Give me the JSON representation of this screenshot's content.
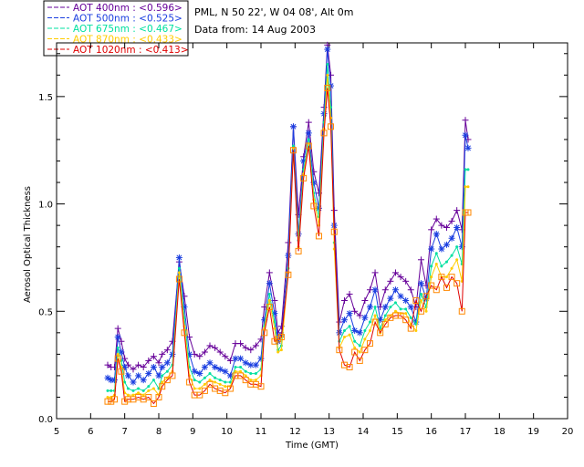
{
  "info": {
    "site": "PML, N 50 22', W 04 08', Alt 0m",
    "date": "Data from: 14 Aug 2003"
  },
  "chart_data": {
    "type": "line",
    "xlabel": "Time (GMT)",
    "ylabel": "Aerosol Optical Thickness",
    "xlim": [
      5,
      20
    ],
    "ylim": [
      0,
      1.75
    ],
    "xticks": [
      5,
      6,
      7,
      8,
      9,
      10,
      11,
      12,
      13,
      14,
      15,
      16,
      17,
      18,
      19,
      20
    ],
    "yticks": [
      0.0,
      0.5,
      1.0,
      1.5
    ],
    "ytick_labels": [
      "0.0",
      "0.5",
      "1.0",
      "1.5"
    ],
    "grid": false,
    "legend_position": "top-left, outside plot",
    "x": [
      6.5,
      6.6,
      6.7,
      6.8,
      6.9,
      7.0,
      7.1,
      7.25,
      7.4,
      7.55,
      7.7,
      7.85,
      8.0,
      8.1,
      8.25,
      8.4,
      8.6,
      8.75,
      8.9,
      9.05,
      9.2,
      9.35,
      9.5,
      9.65,
      9.8,
      9.95,
      10.1,
      10.25,
      10.4,
      10.55,
      10.7,
      10.85,
      11.0,
      11.1,
      11.25,
      11.4,
      11.5,
      11.6,
      11.8,
      11.95,
      12.1,
      12.25,
      12.4,
      12.55,
      12.7,
      12.85,
      12.95,
      13.05,
      13.15,
      13.3,
      13.45,
      13.6,
      13.75,
      13.9,
      14.05,
      14.2,
      14.35,
      14.5,
      14.65,
      14.8,
      14.95,
      15.1,
      15.25,
      15.4,
      15.55,
      15.7,
      15.85,
      16.0,
      16.15,
      16.3,
      16.45,
      16.6,
      16.75,
      16.9,
      17.0,
      17.08
    ],
    "series": [
      {
        "name": "AOT  400nm : <0.596>",
        "color": "#660099",
        "marker": "plus",
        "values": [
          0.25,
          0.24,
          0.24,
          0.42,
          0.36,
          0.28,
          0.25,
          0.23,
          0.25,
          0.24,
          0.27,
          0.29,
          0.26,
          0.3,
          0.32,
          0.36,
          0.73,
          0.57,
          0.38,
          0.3,
          0.29,
          0.31,
          0.34,
          0.33,
          0.31,
          0.29,
          0.27,
          0.35,
          0.35,
          0.33,
          0.32,
          0.34,
          0.37,
          0.52,
          0.68,
          0.55,
          0.4,
          0.43,
          0.82,
          1.36,
          0.95,
          1.22,
          1.38,
          1.15,
          1.05,
          1.45,
          1.74,
          1.6,
          0.97,
          0.45,
          0.55,
          0.58,
          0.5,
          0.48,
          0.55,
          0.6,
          0.68,
          0.52,
          0.6,
          0.64,
          0.68,
          0.66,
          0.64,
          0.6,
          0.52,
          0.74,
          0.62,
          0.88,
          0.93,
          0.9,
          0.89,
          0.92,
          0.97,
          0.88,
          1.39,
          1.3
        ]
      },
      {
        "name": "AOT  500nm : <0.525>",
        "color": "#1a3ee0",
        "marker": "asterisk",
        "values": [
          0.19,
          0.18,
          0.18,
          0.38,
          0.31,
          0.24,
          0.2,
          0.17,
          0.2,
          0.18,
          0.21,
          0.24,
          0.2,
          0.24,
          0.26,
          0.3,
          0.75,
          0.52,
          0.3,
          0.22,
          0.21,
          0.24,
          0.26,
          0.24,
          0.23,
          0.22,
          0.2,
          0.28,
          0.28,
          0.26,
          0.25,
          0.25,
          0.28,
          0.46,
          0.63,
          0.49,
          0.36,
          0.39,
          0.76,
          1.36,
          0.86,
          1.2,
          1.33,
          1.1,
          0.98,
          1.42,
          1.72,
          1.55,
          0.9,
          0.4,
          0.46,
          0.49,
          0.41,
          0.4,
          0.47,
          0.52,
          0.6,
          0.46,
          0.52,
          0.56,
          0.6,
          0.57,
          0.55,
          0.52,
          0.45,
          0.63,
          0.56,
          0.79,
          0.86,
          0.79,
          0.81,
          0.84,
          0.89,
          0.8,
          1.32,
          1.26
        ]
      },
      {
        "name": "AOT  675nm : <0.467>",
        "color": "#00e0a0",
        "marker": "dot",
        "values": [
          0.13,
          0.13,
          0.13,
          0.33,
          0.27,
          0.17,
          0.14,
          0.13,
          0.14,
          0.13,
          0.15,
          0.18,
          0.14,
          0.2,
          0.22,
          0.25,
          0.7,
          0.47,
          0.24,
          0.18,
          0.17,
          0.19,
          0.21,
          0.19,
          0.18,
          0.17,
          0.17,
          0.24,
          0.24,
          0.22,
          0.21,
          0.21,
          0.23,
          0.43,
          0.58,
          0.45,
          0.32,
          0.34,
          0.7,
          1.27,
          0.83,
          1.16,
          1.3,
          1.05,
          0.94,
          1.38,
          1.65,
          1.45,
          0.82,
          0.36,
          0.41,
          0.43,
          0.36,
          0.34,
          0.41,
          0.45,
          0.52,
          0.42,
          0.48,
          0.52,
          0.54,
          0.51,
          0.51,
          0.47,
          0.44,
          0.58,
          0.52,
          0.71,
          0.77,
          0.71,
          0.73,
          0.76,
          0.8,
          0.72,
          1.16,
          1.16
        ]
      },
      {
        "name": "AOT  870nm : <0.433>",
        "color": "#ffcc00",
        "marker": "dot",
        "values": [
          0.1,
          0.1,
          0.11,
          0.3,
          0.24,
          0.12,
          0.11,
          0.11,
          0.12,
          0.11,
          0.13,
          0.14,
          0.11,
          0.17,
          0.19,
          0.22,
          0.68,
          0.43,
          0.2,
          0.14,
          0.14,
          0.16,
          0.18,
          0.17,
          0.16,
          0.15,
          0.15,
          0.22,
          0.22,
          0.2,
          0.18,
          0.18,
          0.2,
          0.42,
          0.55,
          0.42,
          0.31,
          0.32,
          0.68,
          1.26,
          0.8,
          1.14,
          1.28,
          1.02,
          0.9,
          1.35,
          1.6,
          1.4,
          0.79,
          0.33,
          0.38,
          0.39,
          0.33,
          0.31,
          0.37,
          0.41,
          0.48,
          0.4,
          0.46,
          0.48,
          0.5,
          0.49,
          0.49,
          0.44,
          0.41,
          0.55,
          0.5,
          0.66,
          0.72,
          0.66,
          0.66,
          0.7,
          0.74,
          0.64,
          1.08,
          1.08
        ]
      },
      {
        "name": "AOT 1020nm : <0.413>",
        "color": "#e00000",
        "marker": "square",
        "values": [
          0.08,
          0.08,
          0.09,
          0.28,
          0.22,
          0.08,
          0.09,
          0.09,
          0.1,
          0.09,
          0.1,
          0.07,
          0.1,
          0.15,
          0.18,
          0.2,
          0.65,
          0.4,
          0.17,
          0.11,
          0.11,
          0.13,
          0.16,
          0.14,
          0.13,
          0.12,
          0.14,
          0.2,
          0.2,
          0.18,
          0.16,
          0.16,
          0.15,
          0.4,
          0.52,
          0.36,
          0.37,
          0.38,
          0.67,
          1.25,
          0.78,
          1.12,
          1.27,
          0.99,
          0.85,
          1.33,
          1.54,
          1.36,
          0.87,
          0.32,
          0.25,
          0.24,
          0.31,
          0.27,
          0.32,
          0.35,
          0.45,
          0.4,
          0.44,
          0.47,
          0.48,
          0.48,
          0.46,
          0.42,
          0.55,
          0.5,
          0.57,
          0.62,
          0.6,
          0.66,
          0.61,
          0.66,
          0.63,
          0.5,
          0.96,
          0.96
        ]
      }
    ]
  }
}
